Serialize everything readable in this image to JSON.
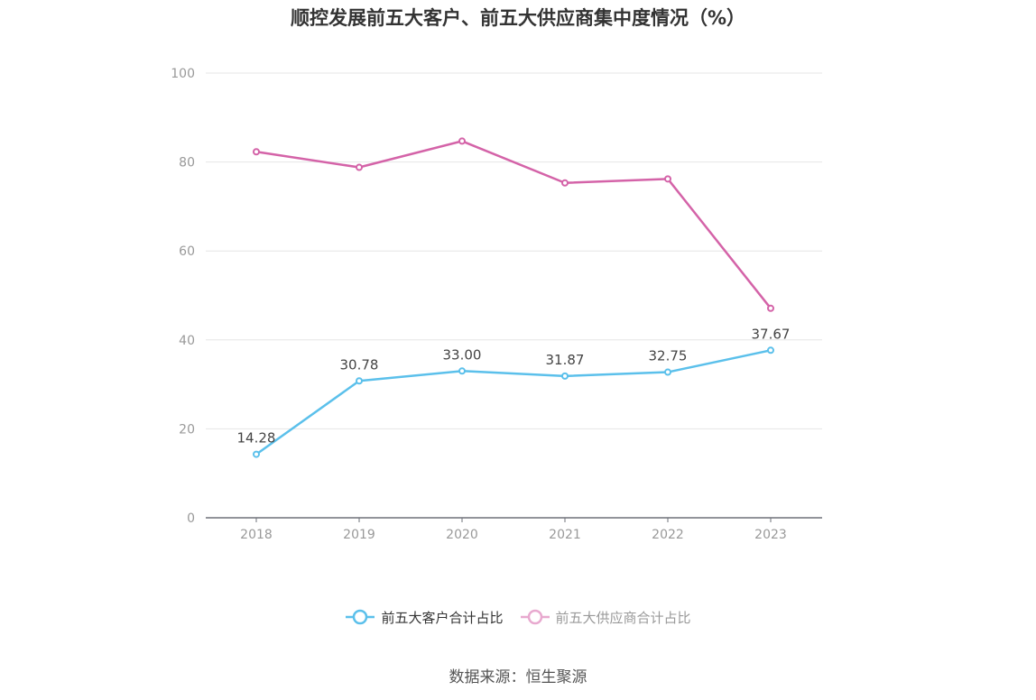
{
  "chart_data": {
    "type": "line",
    "title": "顺控发展前五大客户、前五大供应商集中度情况（%）",
    "categories": [
      "2018",
      "2019",
      "2020",
      "2021",
      "2022",
      "2023"
    ],
    "ylim": [
      0,
      100
    ],
    "y_ticks": [
      "0",
      "20",
      "40",
      "60",
      "80",
      "100"
    ],
    "grid": true,
    "legend_position": "bottom",
    "series": [
      {
        "name": "前五大客户合计占比",
        "values": [
          14.28,
          30.78,
          33.0,
          31.87,
          32.75,
          37.67
        ],
        "labels": [
          "14.28",
          "30.78",
          "33.00",
          "31.87",
          "32.75",
          "37.67"
        ],
        "color": "#5bc0eb"
      },
      {
        "name": "前五大供应商合计占比",
        "values": [
          82.3,
          78.8,
          84.7,
          75.3,
          76.2,
          47.1
        ],
        "color": "#d463a8"
      }
    ]
  },
  "legend": {
    "item1": "前五大客户合计占比",
    "item2": "前五大供应商合计占比",
    "item2_color": "#e8a9cf"
  },
  "source": "数据来源：恒生聚源"
}
